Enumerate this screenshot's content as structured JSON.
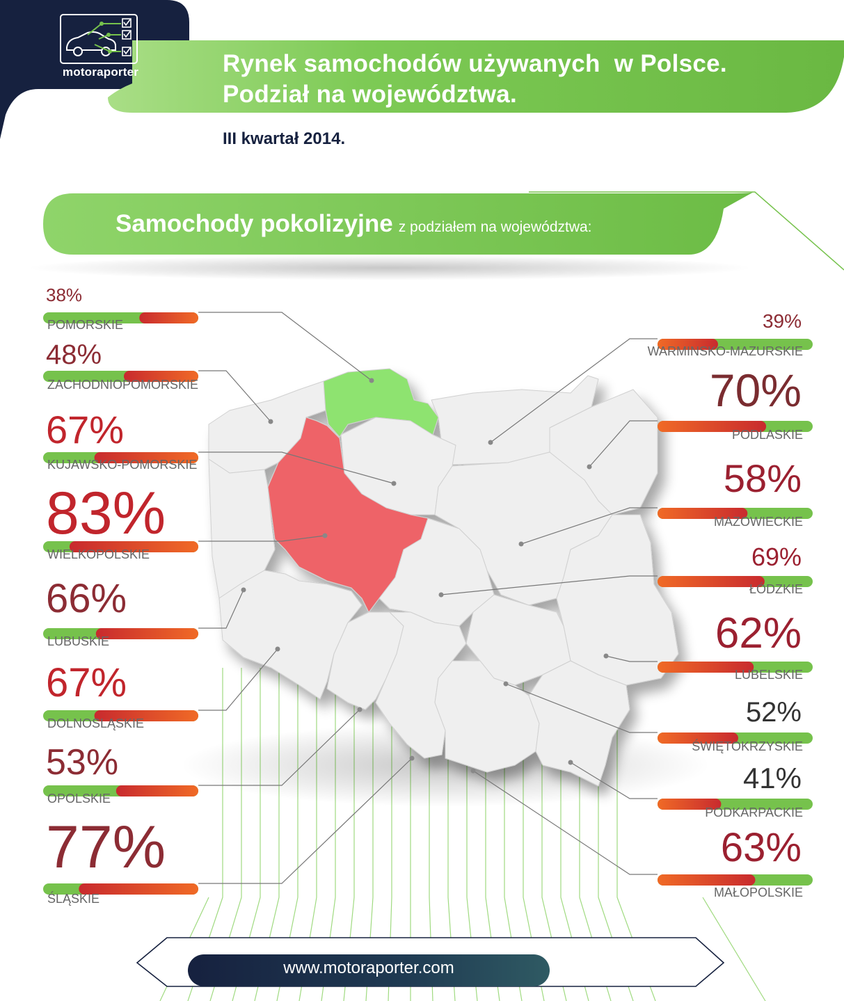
{
  "brand": {
    "logo_text": "motoraporter",
    "logo_icon": "car-checklist-icon",
    "url": "www.motoraporter.com"
  },
  "header": {
    "title_line1": "Rynek samochodów używanych  w Polsce.",
    "title_line2": "Podział na województwa.",
    "subtitle": "III kwartał 2014."
  },
  "section": {
    "title_bold": "Samochody pokolizyjne",
    "title_light": "z podziałem na województwa:"
  },
  "colors": {
    "navy": "#16213f",
    "green": "#76c24c",
    "red": "#d92f2c",
    "orange": "#ef6a28",
    "highlight_low": "#8ee36f",
    "highlight_high": "#ee6467",
    "map_region": "#efefef"
  },
  "chart_data": {
    "type": "bar",
    "title": "Samochody pokolizyjne z podziałem na województwa:",
    "unit": "%",
    "ylim": [
      0,
      100
    ],
    "categories": [
      "POMORSKIE",
      "ZACHODNIOPOMORSKIE",
      "KUJAWSKO-POMORSKIE",
      "WIELKOPOLSKIE",
      "LUBUSKIE",
      "DOLNOŚLĄSKIE",
      "OPOLSKIE",
      "ŚLĄSKIE",
      "WARMIŃSKO-MAZURSKIE",
      "PODLASKIE",
      "MAZOWIECKIE",
      "ŁÓDZKIE",
      "LUBELSKIE",
      "ŚWIĘTOKRZYSKIE",
      "PODKARPACKIE",
      "MAŁOPOLSKIE"
    ],
    "labels": [
      "38%",
      "48%",
      "67%",
      "83%",
      "66%",
      "67%",
      "53%",
      "77%",
      "39%",
      "70%",
      "58%",
      "69%",
      "62%",
      "52%",
      "41%",
      "63%"
    ],
    "label_names": [
      "POMORSKIE",
      "ZACHODNIOPOMORSKIE",
      "KUJAWSKO-POMORSKIE",
      "WIELKOPOLSKIE",
      "LUBUSKIE",
      "DOLNOSLĄSKIE",
      "OPOLSKIE",
      "ŚLĄSKIE",
      "WARMINSKO-MAZURSKIE",
      "PODLASKIE",
      "MAZOWIECKIE",
      "ŁÓDZKIE",
      "LUBELSKIE",
      "ŚWIĘTOKRZYSKIE",
      "PODKARPACKIE",
      "MAŁOPOLSKIE"
    ],
    "values": [
      38,
      48,
      67,
      83,
      66,
      67,
      53,
      77,
      39,
      70,
      58,
      69,
      62,
      52,
      41,
      63
    ],
    "highlight": {
      "lowest": "POMORSKIE",
      "highest": "WIELKOPOLSKIE"
    }
  }
}
